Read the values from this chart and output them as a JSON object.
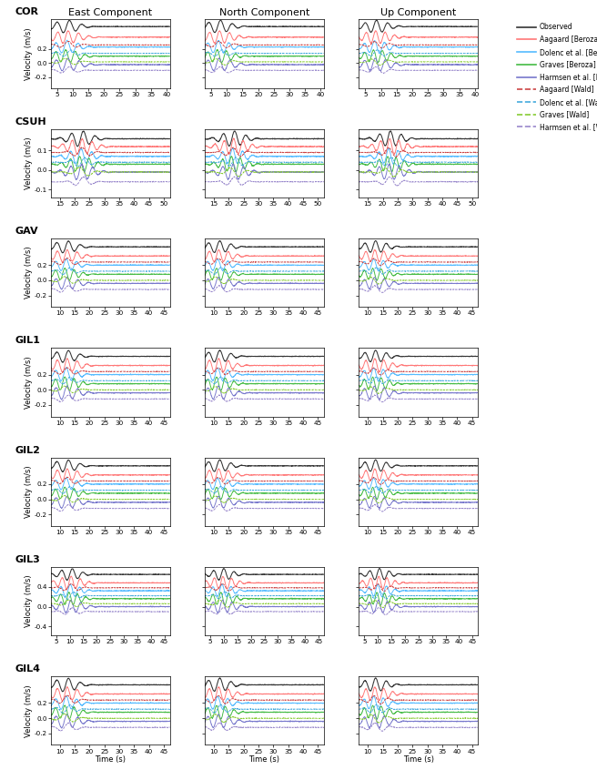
{
  "stations": [
    "COR",
    "CSUH",
    "GAV",
    "GIL1",
    "GIL2",
    "GIL3",
    "GIL4"
  ],
  "components": [
    "East Component",
    "North Component",
    "Up Component"
  ],
  "time_xlabel": "Time (s)",
  "ylabel": "Velocity (m/s)",
  "legend_entries": [
    {
      "label": "Observed",
      "color": "#333333",
      "linestyle": "solid",
      "linewidth": 1.0
    },
    {
      "label": "Aagaard [Beroza]",
      "color": "#ff7777",
      "linestyle": "solid",
      "linewidth": 0.9
    },
    {
      "label": "Dolenc et al. [Beroza]",
      "color": "#55bbff",
      "linestyle": "solid",
      "linewidth": 0.9
    },
    {
      "label": "Graves [Beroza]",
      "color": "#44bb44",
      "linestyle": "solid",
      "linewidth": 0.9
    },
    {
      "label": "Harmsen et al. [Beroza]",
      "color": "#7777cc",
      "linestyle": "solid",
      "linewidth": 0.9
    },
    {
      "label": "Aagaard [Wald]",
      "color": "#cc4444",
      "linestyle": "dashed",
      "linewidth": 0.8
    },
    {
      "label": "Dolenc et al. [Wald]",
      "color": "#44aadd",
      "linestyle": "dashed",
      "linewidth": 0.8
    },
    {
      "label": "Graves [Wald]",
      "color": "#88cc33",
      "linestyle": "dashed",
      "linewidth": 0.8
    },
    {
      "label": "Harmsen et al. [Wald]",
      "color": "#9988cc",
      "linestyle": "dashed",
      "linewidth": 0.8
    }
  ],
  "station_params": {
    "COR": {
      "xlim": [
        3,
        41
      ],
      "ylim": [
        -0.35,
        0.62
      ],
      "yticks": [
        0.2,
        0.0,
        -0.2
      ],
      "xticks": [
        5,
        10,
        15,
        20,
        25,
        30,
        35,
        40
      ],
      "offsets": [
        0.52,
        0.37,
        0.23,
        0.1,
        -0.02,
        0.26,
        0.14,
        0.02,
        -0.1
      ],
      "amps": [
        0.09,
        0.09,
        0.09,
        0.09,
        0.09,
        0.05,
        0.05,
        0.05,
        0.05
      ],
      "peak_t": [
        8,
        8,
        8,
        8,
        8,
        8,
        8,
        8,
        8
      ]
    },
    "CSUH": {
      "xlim": [
        12,
        52
      ],
      "ylim": [
        -0.14,
        0.21
      ],
      "yticks": [
        0.1,
        0.0,
        -0.1
      ],
      "xticks": [
        15,
        20,
        25,
        30,
        35,
        40,
        45,
        50
      ],
      "offsets": [
        0.16,
        0.12,
        0.07,
        0.03,
        -0.01,
        0.09,
        0.04,
        -0.01,
        -0.06
      ],
      "amps": [
        0.04,
        0.04,
        0.04,
        0.04,
        0.04,
        0.025,
        0.025,
        0.025,
        0.025
      ],
      "peak_t": [
        22,
        22,
        22,
        22,
        22,
        22,
        22,
        22,
        22
      ]
    },
    "GAV": {
      "xlim": [
        7,
        47
      ],
      "ylim": [
        -0.35,
        0.55
      ],
      "yticks": [
        0.2,
        0.0,
        -0.2
      ],
      "xticks": [
        10,
        15,
        20,
        25,
        30,
        35,
        40,
        45
      ],
      "offsets": [
        0.44,
        0.32,
        0.2,
        0.08,
        -0.04,
        0.24,
        0.12,
        0.0,
        -0.12
      ],
      "amps": [
        0.08,
        0.08,
        0.08,
        0.08,
        0.08,
        0.05,
        0.05,
        0.05,
        0.05
      ],
      "peak_t": [
        12,
        12,
        12,
        12,
        12,
        12,
        12,
        12,
        12
      ]
    },
    "GIL1": {
      "xlim": [
        7,
        47
      ],
      "ylim": [
        -0.35,
        0.55
      ],
      "yticks": [
        0.2,
        0.0,
        -0.2
      ],
      "xticks": [
        10,
        15,
        20,
        25,
        30,
        35,
        40,
        45
      ],
      "offsets": [
        0.44,
        0.32,
        0.2,
        0.08,
        -0.04,
        0.24,
        0.12,
        0.0,
        -0.12
      ],
      "amps": [
        0.08,
        0.09,
        0.09,
        0.09,
        0.09,
        0.05,
        0.05,
        0.05,
        0.05
      ],
      "peak_t": [
        12,
        12,
        12,
        12,
        12,
        12,
        12,
        12,
        12
      ]
    },
    "GIL2": {
      "xlim": [
        7,
        47
      ],
      "ylim": [
        -0.35,
        0.55
      ],
      "yticks": [
        0.2,
        0.0,
        -0.2
      ],
      "xticks": [
        10,
        15,
        20,
        25,
        30,
        35,
        40,
        45
      ],
      "offsets": [
        0.44,
        0.32,
        0.2,
        0.08,
        -0.04,
        0.24,
        0.12,
        0.0,
        -0.12
      ],
      "amps": [
        0.08,
        0.08,
        0.08,
        0.08,
        0.08,
        0.05,
        0.05,
        0.05,
        0.05
      ],
      "peak_t": [
        12,
        12,
        12,
        12,
        12,
        12,
        12,
        12,
        12
      ]
    },
    "GIL3": {
      "xlim": [
        3,
        47
      ],
      "ylim": [
        -0.58,
        0.8
      ],
      "yticks": [
        0.4,
        0.0,
        -0.4
      ],
      "xticks": [
        5,
        10,
        15,
        20,
        25,
        30,
        35,
        40,
        45
      ],
      "offsets": [
        0.65,
        0.48,
        0.32,
        0.16,
        0.0,
        0.38,
        0.22,
        0.06,
        -0.1
      ],
      "amps": [
        0.12,
        0.13,
        0.13,
        0.13,
        0.13,
        0.08,
        0.08,
        0.08,
        0.08
      ],
      "peak_t": [
        10,
        10,
        10,
        10,
        10,
        10,
        10,
        10,
        10
      ]
    },
    "GIL4": {
      "xlim": [
        7,
        47
      ],
      "ylim": [
        -0.35,
        0.55
      ],
      "yticks": [
        0.2,
        0.0,
        -0.2
      ],
      "xticks": [
        10,
        15,
        20,
        25,
        30,
        35,
        40,
        45
      ],
      "offsets": [
        0.44,
        0.32,
        0.2,
        0.08,
        -0.04,
        0.24,
        0.12,
        0.0,
        -0.12
      ],
      "amps": [
        0.09,
        0.09,
        0.09,
        0.09,
        0.09,
        0.06,
        0.06,
        0.06,
        0.06
      ],
      "peak_t": [
        12,
        12,
        12,
        12,
        12,
        12,
        12,
        12,
        12
      ]
    }
  },
  "n_lines": 9,
  "background_color": "#ffffff",
  "tick_fontsize": 5.2,
  "label_fontsize": 6.0,
  "title_fontsize": 8,
  "station_label_fontsize": 8
}
